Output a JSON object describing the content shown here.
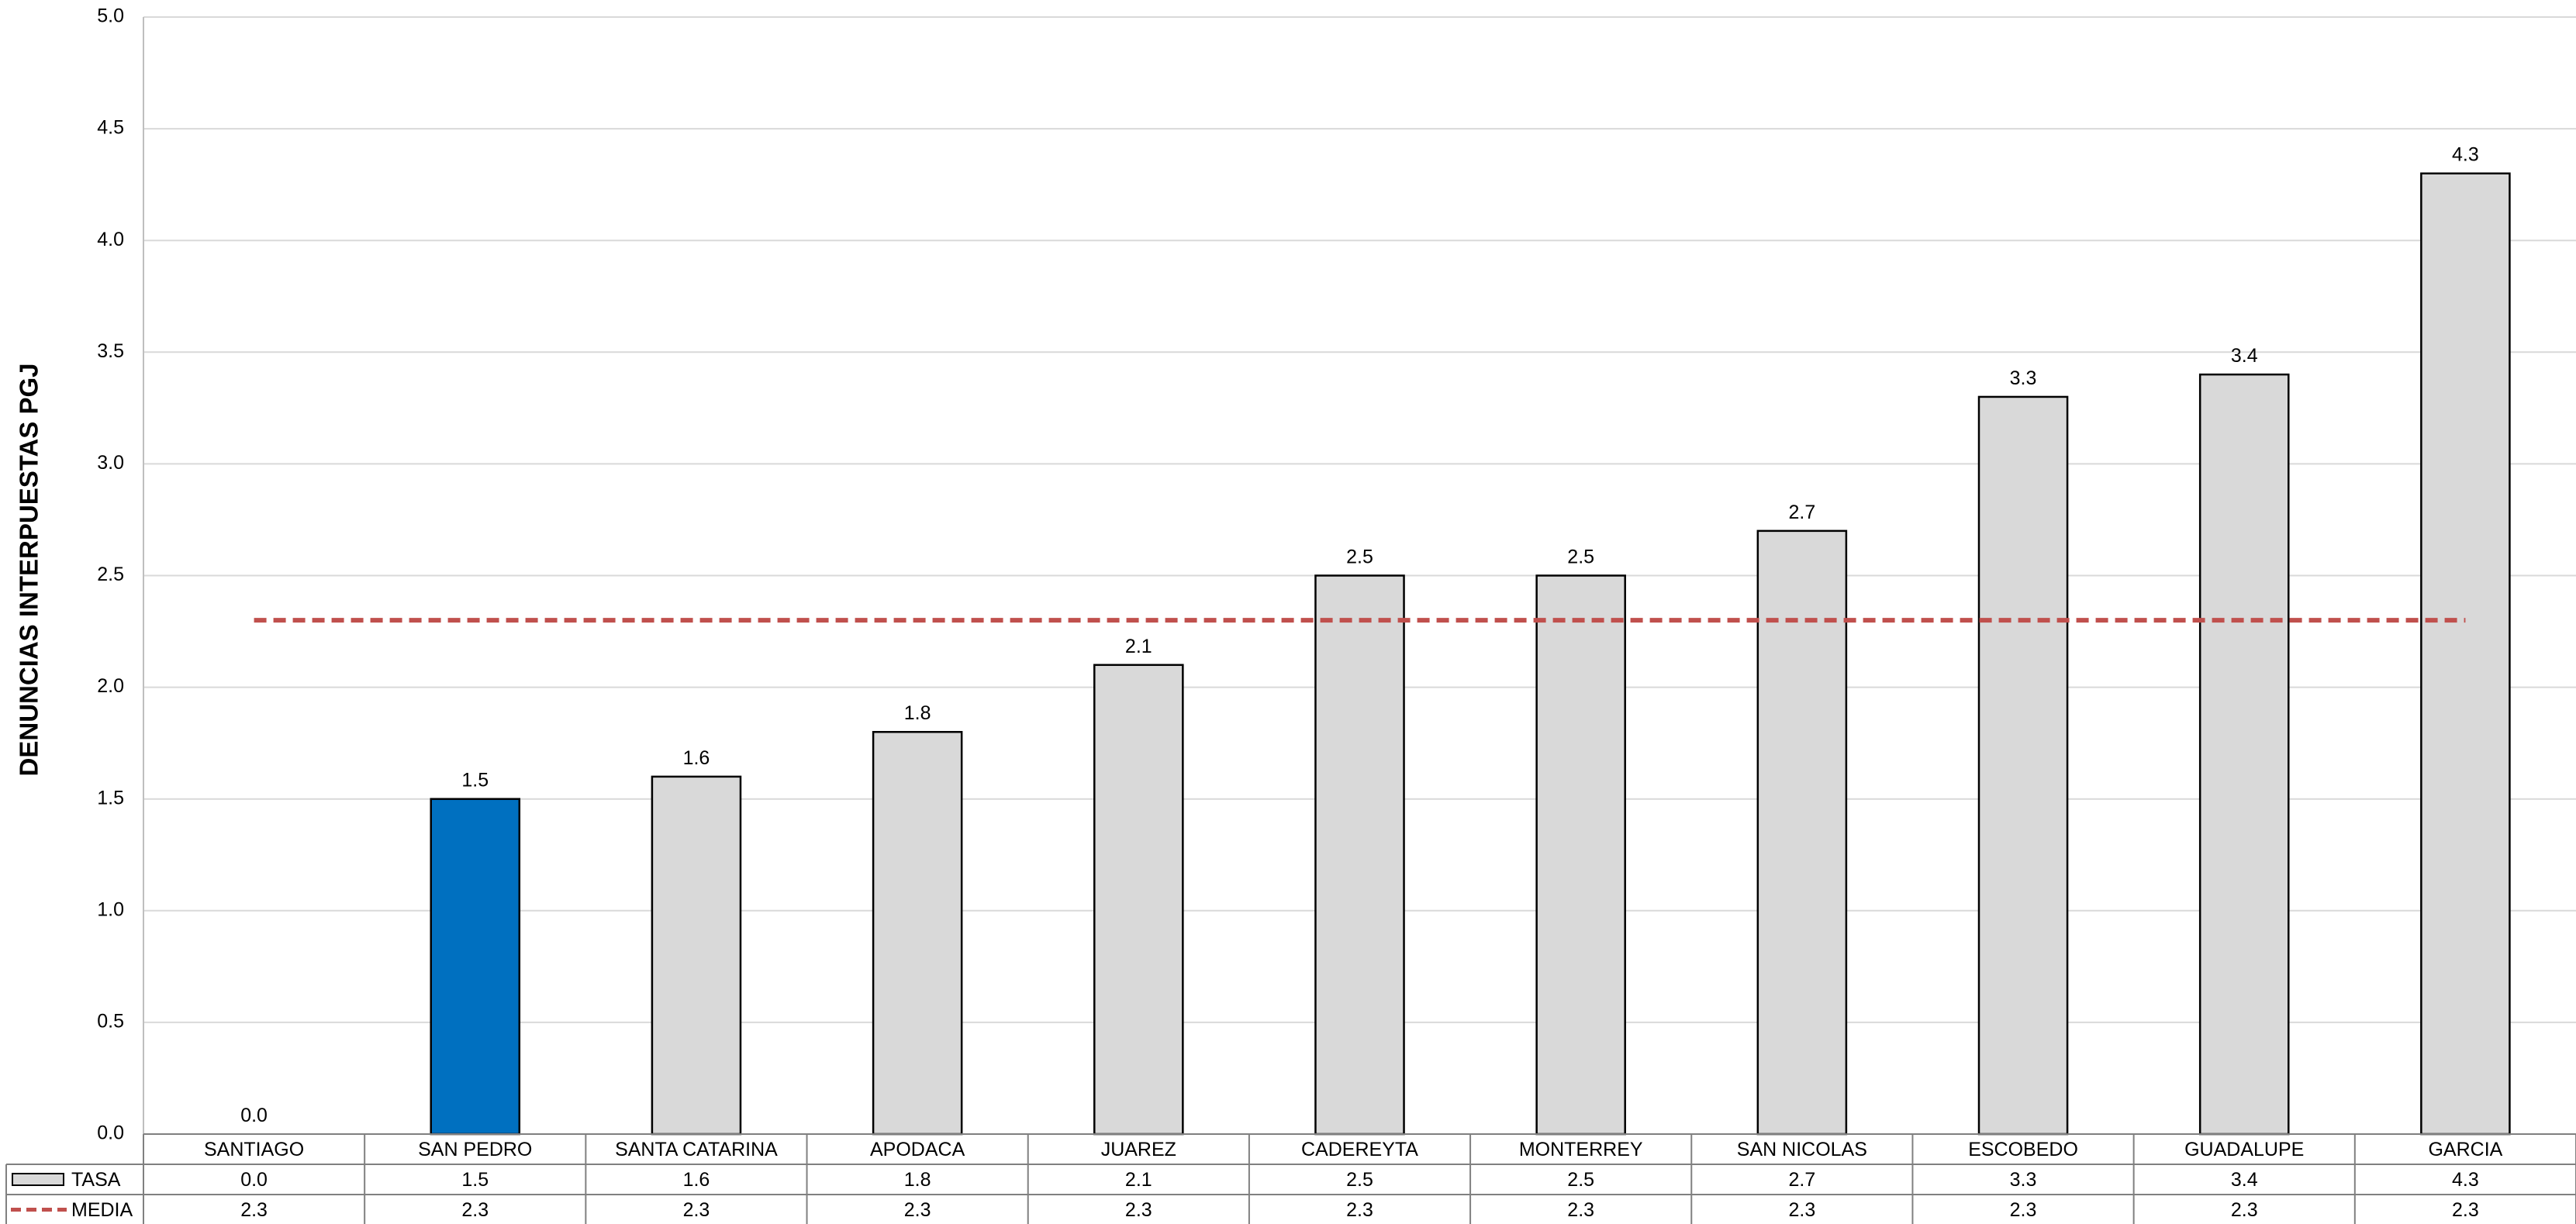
{
  "chart_data": {
    "type": "bar",
    "ylabel": "DENUNCIAS INTERPUESTAS PGJ",
    "xlabel": "",
    "ylim": [
      0,
      5
    ],
    "ytick_step": 0.5,
    "y_tick_labels": [
      "0.0",
      "0.5",
      "1.0",
      "1.5",
      "2.0",
      "2.5",
      "3.0",
      "3.5",
      "4.0",
      "4.5",
      "5.0"
    ],
    "grid": true,
    "categories": [
      "SANTIAGO",
      "SAN PEDRO",
      "SANTA CATARINA",
      "APODACA",
      "JUAREZ",
      "CADEREYTA",
      "MONTERREY",
      "SAN NICOLAS",
      "ESCOBEDO",
      "GUADALUPE",
      "GARCIA"
    ],
    "series": [
      {
        "name": "TASA",
        "type": "bar",
        "values": [
          0.0,
          1.5,
          1.6,
          1.8,
          2.1,
          2.5,
          2.5,
          2.7,
          3.3,
          3.4,
          4.3
        ],
        "labels": [
          "0.0",
          "1.5",
          "1.6",
          "1.8",
          "2.1",
          "2.5",
          "2.5",
          "2.7",
          "3.3",
          "3.4",
          "4.3"
        ],
        "color": "#d9d9d9",
        "highlight_category": "SAN PEDRO",
        "highlight_color": "#0070c0"
      },
      {
        "name": "MEDIA",
        "type": "line",
        "style": "dashed",
        "values": [
          2.3,
          2.3,
          2.3,
          2.3,
          2.3,
          2.3,
          2.3,
          2.3,
          2.3,
          2.3,
          2.3
        ],
        "labels": [
          "2.3",
          "2.3",
          "2.3",
          "2.3",
          "2.3",
          "2.3",
          "2.3",
          "2.3",
          "2.3",
          "2.3",
          "2.3"
        ],
        "color": "#c0504d"
      }
    ],
    "legend": "data-table-bottom"
  }
}
